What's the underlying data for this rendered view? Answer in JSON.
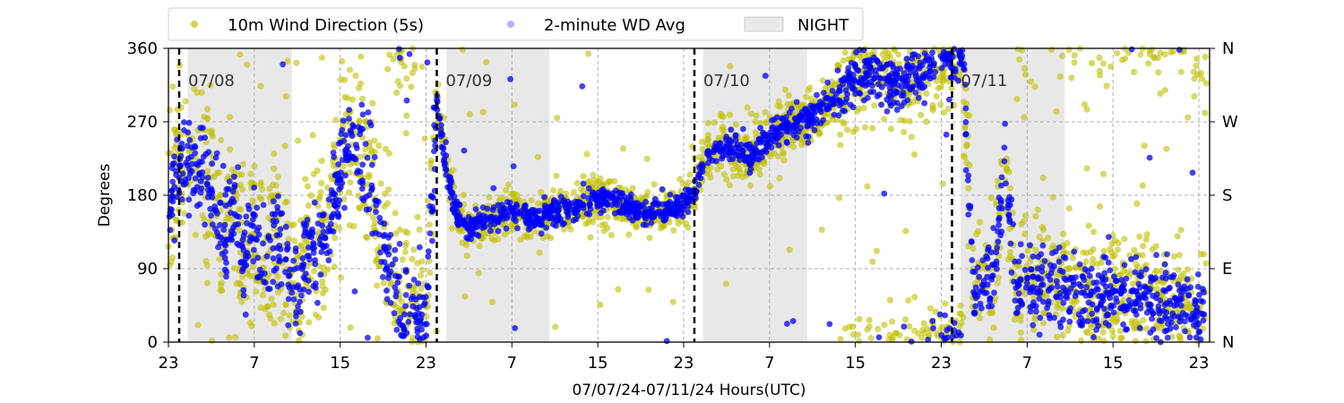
{
  "chart_data": {
    "type": "scatter",
    "title": "",
    "xlabel": "07/07/24-07/11/24  Hours(UTC)",
    "ylabel": "Degrees",
    "x_unit": "hours",
    "xlim": [
      0,
      97
    ],
    "ylim": [
      0,
      360
    ],
    "x_ticks": [
      {
        "x": 0,
        "label": "23"
      },
      {
        "x": 8,
        "label": "7"
      },
      {
        "x": 16,
        "label": "15"
      },
      {
        "x": 24,
        "label": "23"
      },
      {
        "x": 32,
        "label": "7"
      },
      {
        "x": 40,
        "label": "15"
      },
      {
        "x": 48,
        "label": "23"
      },
      {
        "x": 56,
        "label": "7"
      },
      {
        "x": 64,
        "label": "15"
      },
      {
        "x": 72,
        "label": "23"
      },
      {
        "x": 80,
        "label": "7"
      },
      {
        "x": 88,
        "label": "15"
      },
      {
        "x": 96,
        "label": "23"
      }
    ],
    "y_ticks": [
      0,
      90,
      180,
      270,
      360
    ],
    "y_ticks_right": [
      {
        "y": 0,
        "label": "N"
      },
      {
        "y": 90,
        "label": "E"
      },
      {
        "y": 180,
        "label": "S"
      },
      {
        "y": 270,
        "label": "W"
      },
      {
        "y": 360,
        "label": "N"
      }
    ],
    "grid": true,
    "legend": {
      "placement": "top-left, outside above plot",
      "columns": 3
    },
    "night_label": "NIGHT",
    "night_color": "#e8e8e8",
    "night_periods": [
      [
        1.8,
        11.5
      ],
      [
        25.9,
        35.5
      ],
      [
        49.8,
        59.5
      ],
      [
        73.8,
        83.5
      ]
    ],
    "day_markers": [
      {
        "x": 1,
        "label": "07/08"
      },
      {
        "x": 25,
        "label": "07/09"
      },
      {
        "x": 49,
        "label": "07/10"
      },
      {
        "x": 73,
        "label": "07/11"
      }
    ],
    "series": [
      {
        "name": "10m Wind Direction (5s)",
        "color": "#bfbf00",
        "marker": "circle",
        "profile": [
          [
            0,
            150
          ],
          [
            0.8,
            195
          ],
          [
            1.5,
            215
          ],
          [
            2.5,
            225
          ],
          [
            3.4,
            205
          ],
          [
            4,
            200
          ],
          [
            5,
            120
          ],
          [
            6,
            160
          ],
          [
            7,
            110
          ],
          [
            8,
            140
          ],
          [
            9,
            100
          ],
          [
            10,
            130
          ],
          [
            11,
            90
          ],
          [
            12,
            70
          ],
          [
            13,
            130
          ],
          [
            14,
            100
          ],
          [
            15,
            150
          ],
          [
            16,
            200
          ],
          [
            17,
            260
          ],
          [
            18,
            220
          ],
          [
            19,
            200
          ],
          [
            20,
            120
          ],
          [
            21,
            70
          ],
          [
            22,
            30
          ],
          [
            23,
            40
          ],
          [
            24,
            40
          ],
          [
            25,
            300
          ],
          [
            26,
            200
          ],
          [
            27,
            150
          ],
          [
            28,
            140
          ],
          [
            30,
            150
          ],
          [
            32,
            160
          ],
          [
            34,
            150
          ],
          [
            36,
            160
          ],
          [
            38,
            165
          ],
          [
            40,
            175
          ],
          [
            42,
            170
          ],
          [
            44,
            160
          ],
          [
            46,
            160
          ],
          [
            48,
            170
          ],
          [
            49,
            180
          ],
          [
            50,
            230
          ],
          [
            52,
            240
          ],
          [
            54,
            230
          ],
          [
            56,
            250
          ],
          [
            58,
            270
          ],
          [
            60,
            275
          ],
          [
            62,
            300
          ],
          [
            64,
            330
          ],
          [
            66,
            330
          ],
          [
            68,
            320
          ],
          [
            70,
            330
          ],
          [
            72,
            345
          ],
          [
            74,
            355
          ],
          [
            75,
            60
          ],
          [
            76,
            80
          ],
          [
            77,
            90
          ],
          [
            78,
            220
          ],
          [
            79,
            60
          ],
          [
            80,
            70
          ],
          [
            82,
            70
          ],
          [
            84,
            60
          ],
          [
            86,
            50
          ],
          [
            88,
            60
          ],
          [
            90,
            55
          ],
          [
            92,
            50
          ],
          [
            94,
            45
          ],
          [
            96,
            40
          ]
        ]
      },
      {
        "name": "2-minute WD Avg",
        "color": "#0000ff",
        "marker": "circle",
        "profile": [
          [
            0,
            150
          ],
          [
            0.8,
            195
          ],
          [
            1.5,
            215
          ],
          [
            2.5,
            225
          ],
          [
            3.4,
            205
          ],
          [
            4,
            200
          ],
          [
            5,
            120
          ],
          [
            6,
            160
          ],
          [
            7,
            110
          ],
          [
            8,
            140
          ],
          [
            9,
            100
          ],
          [
            10,
            130
          ],
          [
            11,
            90
          ],
          [
            12,
            70
          ],
          [
            13,
            130
          ],
          [
            14,
            100
          ],
          [
            15,
            150
          ],
          [
            16,
            200
          ],
          [
            17,
            260
          ],
          [
            18,
            220
          ],
          [
            19,
            200
          ],
          [
            20,
            120
          ],
          [
            21,
            70
          ],
          [
            22,
            30
          ],
          [
            23,
            40
          ],
          [
            24,
            40
          ],
          [
            25,
            300
          ],
          [
            26,
            200
          ],
          [
            27,
            150
          ],
          [
            28,
            140
          ],
          [
            30,
            150
          ],
          [
            32,
            160
          ],
          [
            34,
            150
          ],
          [
            36,
            160
          ],
          [
            38,
            165
          ],
          [
            40,
            175
          ],
          [
            42,
            170
          ],
          [
            44,
            160
          ],
          [
            46,
            160
          ],
          [
            48,
            170
          ],
          [
            49,
            180
          ],
          [
            50,
            230
          ],
          [
            52,
            240
          ],
          [
            54,
            230
          ],
          [
            56,
            250
          ],
          [
            58,
            270
          ],
          [
            60,
            275
          ],
          [
            62,
            300
          ],
          [
            64,
            330
          ],
          [
            66,
            330
          ],
          [
            68,
            320
          ],
          [
            70,
            330
          ],
          [
            72,
            345
          ],
          [
            74,
            355
          ],
          [
            75,
            60
          ],
          [
            76,
            80
          ],
          [
            77,
            90
          ],
          [
            78,
            220
          ],
          [
            79,
            60
          ],
          [
            80,
            70
          ],
          [
            82,
            70
          ],
          [
            84,
            60
          ],
          [
            86,
            50
          ],
          [
            88,
            60
          ],
          [
            90,
            55
          ],
          [
            92,
            50
          ],
          [
            94,
            45
          ],
          [
            96,
            40
          ]
        ]
      }
    ]
  }
}
